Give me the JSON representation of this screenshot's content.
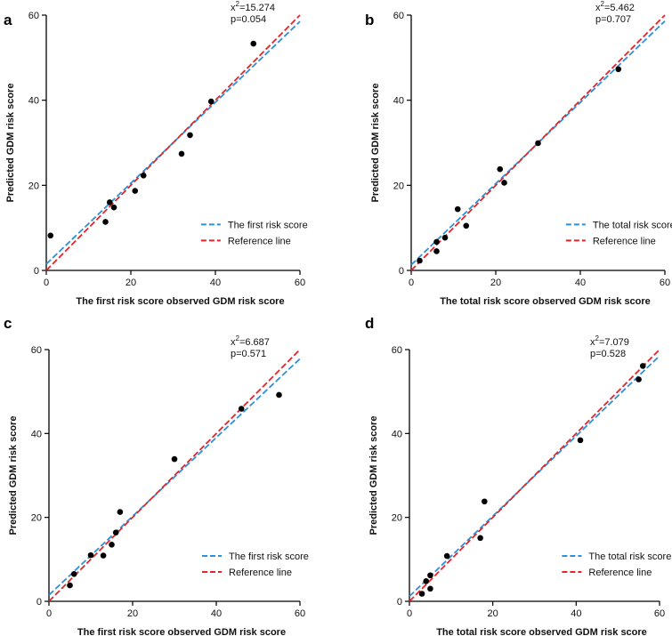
{
  "colors": {
    "model": "#2f8fd8",
    "reference": "#e0262b",
    "point": "#000000",
    "axis": "#000000"
  },
  "chart_data": [
    {
      "type": "scatter",
      "panel_label": "a",
      "xlabel": "The first risk score observed GDM risk score",
      "ylabel": "Predicted GDM risk score",
      "xlim": [
        0,
        60
      ],
      "ylim": [
        0,
        60
      ],
      "xticks": [
        "0",
        "20",
        "40",
        "60"
      ],
      "yticks": [
        "0",
        "20",
        "40",
        "60"
      ],
      "annotation": {
        "chi_prefix": "x",
        "chi_sup": "2",
        "chi_value": "=15.274",
        "p_text": "p=0.054"
      },
      "legend": [
        "The first risk score",
        "Reference line"
      ],
      "fit_line": [
        [
          0,
          1.5
        ],
        [
          60,
          58.5
        ]
      ],
      "reference_line": [
        [
          0,
          0
        ],
        [
          60,
          60
        ]
      ],
      "points": [
        [
          1,
          8.2
        ],
        [
          14,
          11.4
        ],
        [
          15,
          16
        ],
        [
          16,
          14.8
        ],
        [
          21,
          18.7
        ],
        [
          23,
          22.3
        ],
        [
          32,
          27.4
        ],
        [
          34,
          31.8
        ],
        [
          39,
          39.7
        ],
        [
          49,
          53.3
        ]
      ]
    },
    {
      "type": "scatter",
      "panel_label": "b",
      "xlabel": "The total risk score observed GDM risk score",
      "ylabel": "Predicted GDM risk score",
      "xlim": [
        0,
        60
      ],
      "ylim": [
        0,
        60
      ],
      "xticks": [
        "0",
        "20",
        "40",
        "60"
      ],
      "yticks": [
        "0",
        "20",
        "40",
        "60"
      ],
      "annotation": {
        "chi_prefix": "x",
        "chi_sup": "2",
        "chi_value": "=5.462",
        "p_text": "p=0.707"
      },
      "legend": [
        "The total risk score",
        "Reference line"
      ],
      "fit_line": [
        [
          0,
          1.3
        ],
        [
          60,
          58.6
        ]
      ],
      "reference_line": [
        [
          0,
          0
        ],
        [
          60,
          60
        ]
      ],
      "points": [
        [
          2,
          2.3
        ],
        [
          6,
          4.5
        ],
        [
          6,
          6.7
        ],
        [
          8,
          7.7
        ],
        [
          11,
          14.4
        ],
        [
          13,
          10.5
        ],
        [
          21,
          23.8
        ],
        [
          22,
          20.6
        ],
        [
          30,
          29.9
        ],
        [
          49,
          47.3
        ]
      ]
    },
    {
      "type": "scatter",
      "panel_label": "c",
      "xlabel": "The first risk score observed GDM risk score",
      "ylabel": "Predicted GDM risk score",
      "xlim": [
        0,
        60
      ],
      "ylim": [
        0,
        60
      ],
      "xticks": [
        "0",
        "20",
        "40",
        "60"
      ],
      "yticks": [
        "0",
        "20",
        "40",
        "60"
      ],
      "annotation": {
        "chi_prefix": "x",
        "chi_sup": "2",
        "chi_value": "=6.687",
        "p_text": "p=0.571"
      },
      "legend": [
        "The first risk score",
        "Reference line"
      ],
      "fit_line": [
        [
          0,
          1.5
        ],
        [
          60,
          57.8
        ]
      ],
      "reference_line": [
        [
          0,
          0
        ],
        [
          60,
          60
        ]
      ],
      "points": [
        [
          5,
          3.8
        ],
        [
          6,
          6.5
        ],
        [
          10,
          11
        ],
        [
          13,
          10.9
        ],
        [
          15,
          13.5
        ],
        [
          16,
          16.4
        ],
        [
          17,
          21.3
        ],
        [
          30,
          33.9
        ],
        [
          46,
          45.9
        ],
        [
          55,
          49.2
        ]
      ]
    },
    {
      "type": "scatter",
      "panel_label": "d",
      "xlabel": "The total risk score observed GDM risk score",
      "ylabel": "Predicted GDM risk score",
      "xlim": [
        0,
        60
      ],
      "ylim": [
        0,
        60
      ],
      "xticks": [
        "0",
        "20",
        "40",
        "60"
      ],
      "yticks": [
        "0",
        "20",
        "40",
        "60"
      ],
      "annotation": {
        "chi_prefix": "x",
        "chi_sup": "2",
        "chi_value": "=7.079",
        "p_text": "p=0.528"
      },
      "legend": [
        "The total risk score",
        "Reference line"
      ],
      "fit_line": [
        [
          0,
          1.2
        ],
        [
          60,
          58.5
        ]
      ],
      "reference_line": [
        [
          0,
          0
        ],
        [
          60,
          60
        ]
      ],
      "points": [
        [
          3,
          1.8
        ],
        [
          4,
          4.8
        ],
        [
          5,
          3
        ],
        [
          5,
          6.2
        ],
        [
          9,
          10.8
        ],
        [
          17,
          15.1
        ],
        [
          18,
          23.8
        ],
        [
          41,
          38.4
        ],
        [
          55,
          52.9
        ],
        [
          56,
          56.1
        ]
      ]
    }
  ]
}
